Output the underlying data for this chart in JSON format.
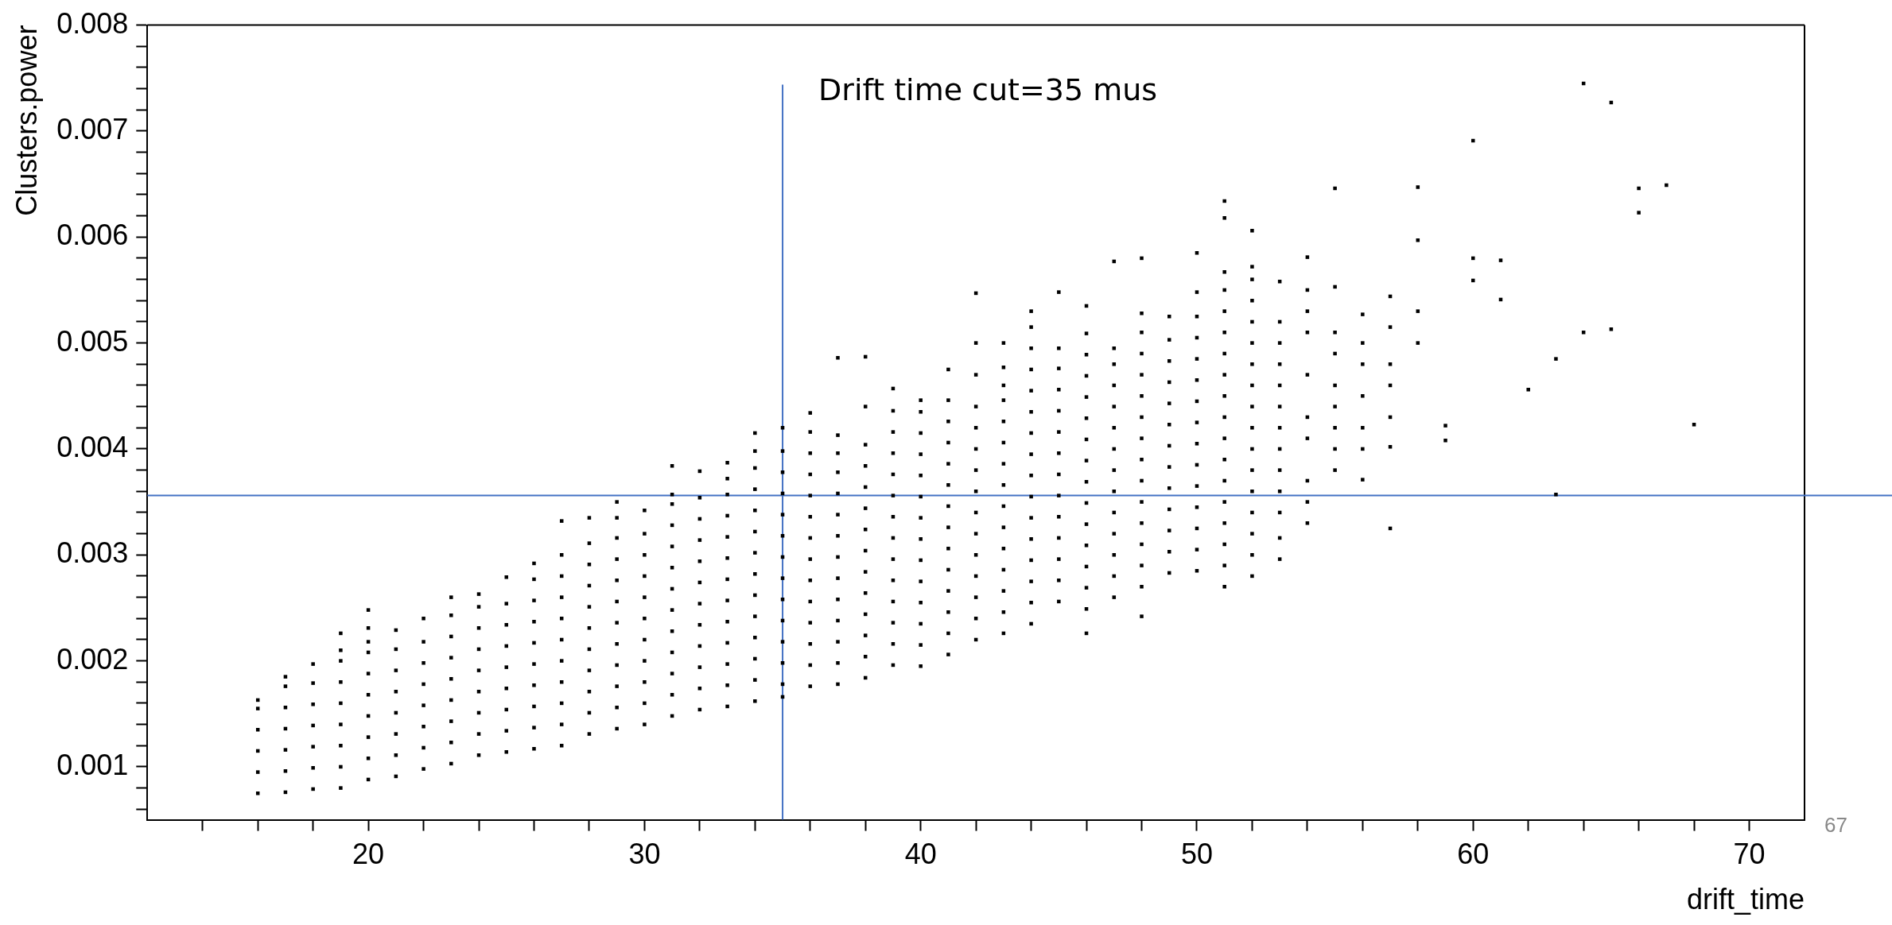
{
  "chart_data": {
    "type": "scatter",
    "xlabel": "drift_time",
    "ylabel": "Clusters.power",
    "marker": "square",
    "xlim": [
      12,
      72
    ],
    "ylim": [
      0.0005,
      0.008
    ],
    "xticks": [
      {
        "value": 14,
        "label": null
      },
      {
        "value": 16,
        "label": null
      },
      {
        "value": 18,
        "label": null
      },
      20,
      {
        "value": 22,
        "label": null
      },
      {
        "value": 24,
        "label": null
      },
      {
        "value": 26,
        "label": null
      },
      {
        "value": 28,
        "label": null
      },
      30,
      {
        "value": 32,
        "label": null
      },
      {
        "value": 34,
        "label": null
      },
      {
        "value": 36,
        "label": null
      },
      {
        "value": 38,
        "label": null
      },
      40,
      {
        "value": 42,
        "label": null
      },
      {
        "value": 44,
        "label": null
      },
      {
        "value": 46,
        "label": null
      },
      {
        "value": 48,
        "label": null
      },
      50,
      {
        "value": 52,
        "label": null
      },
      {
        "value": 54,
        "label": null
      },
      {
        "value": 56,
        "label": null
      },
      {
        "value": 58,
        "label": null
      },
      60,
      {
        "value": 62,
        "label": null
      },
      {
        "value": 64,
        "label": null
      },
      {
        "value": 66,
        "label": null
      },
      {
        "value": 68,
        "label": null
      },
      70
    ],
    "yticks": [
      {
        "value": 0.0006,
        "label": null
      },
      {
        "value": 0.0008,
        "label": null
      },
      0.001,
      {
        "value": 0.0012,
        "label": null
      },
      {
        "value": 0.0014,
        "label": null
      },
      {
        "value": 0.0016,
        "label": null
      },
      {
        "value": 0.0018,
        "label": null
      },
      0.002,
      {
        "value": 0.0022,
        "label": null
      },
      {
        "value": 0.0024,
        "label": null
      },
      {
        "value": 0.0026,
        "label": null
      },
      {
        "value": 0.0028,
        "label": null
      },
      0.003,
      {
        "value": 0.0032,
        "label": null
      },
      {
        "value": 0.0034,
        "label": null
      },
      {
        "value": 0.0036,
        "label": null
      },
      {
        "value": 0.0038,
        "label": null
      },
      0.004,
      {
        "value": 0.0042,
        "label": null
      },
      {
        "value": 0.0044,
        "label": null
      },
      {
        "value": 0.0046,
        "label": null
      },
      {
        "value": 0.0048,
        "label": null
      },
      0.005,
      {
        "value": 0.0052,
        "label": null
      },
      {
        "value": 0.0054,
        "label": null
      },
      {
        "value": 0.0056,
        "label": null
      },
      {
        "value": 0.0058,
        "label": null
      },
      0.006,
      {
        "value": 0.0062,
        "label": null
      },
      {
        "value": 0.0064,
        "label": null
      },
      {
        "value": 0.0066,
        "label": null
      },
      {
        "value": 0.0068,
        "label": null
      },
      0.007,
      {
        "value": 0.0072,
        "label": null
      },
      {
        "value": 0.0074,
        "label": null
      },
      {
        "value": 0.0076,
        "label": null
      },
      {
        "value": 0.0078,
        "label": null
      },
      0.008
    ],
    "ref_lines": [
      {
        "axis": "x",
        "value": 35,
        "label": "Drift time cut=35 mus",
        "color": "#4472c4"
      },
      {
        "axis": "y",
        "value": 0.00356,
        "color": "#4472c4"
      }
    ],
    "annotations": [
      "67"
    ],
    "series": [
      {
        "color": "#000000",
        "x": [
          16,
          16,
          16,
          16,
          16,
          16
        ],
        "values": [
          0.00075,
          0.00095,
          0.00115,
          0.00135,
          0.00155,
          0.00163
        ]
      },
      {
        "color": "#000000",
        "x": [
          17,
          17,
          17,
          17,
          17,
          17,
          17
        ],
        "values": [
          0.00076,
          0.00096,
          0.00116,
          0.00136,
          0.00156,
          0.00176,
          0.00185
        ]
      },
      {
        "color": "#000000",
        "x": [
          18,
          18,
          18,
          18,
          18,
          18,
          18
        ],
        "values": [
          0.00079,
          0.00099,
          0.00119,
          0.00139,
          0.00159,
          0.00179,
          0.00197
        ]
      },
      {
        "color": "#000000",
        "x": [
          19,
          19,
          19,
          19,
          19,
          19,
          19,
          19,
          19
        ],
        "values": [
          0.0008,
          0.001,
          0.0012,
          0.0014,
          0.0016,
          0.0018,
          0.002,
          0.0021,
          0.00226
        ]
      },
      {
        "color": "#000000",
        "x": [
          20,
          20,
          20,
          20,
          20,
          20,
          20,
          20,
          20,
          20
        ],
        "values": [
          0.00088,
          0.00108,
          0.00128,
          0.00148,
          0.00168,
          0.00188,
          0.00208,
          0.00218,
          0.00231,
          0.00248
        ]
      },
      {
        "color": "#000000",
        "x": [
          21,
          21,
          21,
          21,
          21,
          21,
          21,
          21
        ],
        "values": [
          0.00091,
          0.00111,
          0.00131,
          0.00151,
          0.00171,
          0.00191,
          0.00211,
          0.00229
        ]
      },
      {
        "color": "#000000",
        "x": [
          22,
          22,
          22,
          22,
          22,
          22,
          22,
          22
        ],
        "values": [
          0.00098,
          0.00118,
          0.00138,
          0.00158,
          0.00178,
          0.00198,
          0.00218,
          0.0024
        ]
      },
      {
        "color": "#000000",
        "x": [
          23,
          23,
          23,
          23,
          23,
          23,
          23,
          23,
          23
        ],
        "values": [
          0.00103,
          0.00123,
          0.00143,
          0.00163,
          0.00183,
          0.00203,
          0.00223,
          0.00243,
          0.0026
        ]
      },
      {
        "color": "#000000",
        "x": [
          24,
          24,
          24,
          24,
          24,
          24,
          24,
          24,
          24
        ],
        "values": [
          0.00111,
          0.00131,
          0.00151,
          0.00171,
          0.00191,
          0.00211,
          0.00231,
          0.00251,
          0.00263
        ]
      },
      {
        "color": "#000000",
        "x": [
          25,
          25,
          25,
          25,
          25,
          25,
          25,
          25,
          25
        ],
        "values": [
          0.00114,
          0.00134,
          0.00154,
          0.00174,
          0.00194,
          0.00214,
          0.00234,
          0.00254,
          0.00279
        ]
      },
      {
        "color": "#000000",
        "x": [
          26,
          26,
          26,
          26,
          26,
          26,
          26,
          26,
          26,
          26
        ],
        "values": [
          0.00117,
          0.00137,
          0.00157,
          0.00177,
          0.00197,
          0.00217,
          0.00237,
          0.00257,
          0.00277,
          0.00292
        ]
      },
      {
        "color": "#000000",
        "x": [
          27,
          27,
          27,
          27,
          27,
          27,
          27,
          27,
          27,
          27,
          27
        ],
        "values": [
          0.0012,
          0.0014,
          0.0016,
          0.0018,
          0.002,
          0.0022,
          0.0024,
          0.0026,
          0.0028,
          0.003,
          0.00332
        ]
      },
      {
        "color": "#000000",
        "x": [
          28,
          28,
          28,
          28,
          28,
          28,
          28,
          28,
          28,
          28,
          28
        ],
        "values": [
          0.00131,
          0.00151,
          0.00171,
          0.00191,
          0.00211,
          0.00231,
          0.00251,
          0.00271,
          0.00291,
          0.00311,
          0.00335
        ]
      },
      {
        "color": "#000000",
        "x": [
          29,
          29,
          29,
          29,
          29,
          29,
          29,
          29,
          29,
          29,
          29,
          29
        ],
        "values": [
          0.00136,
          0.00156,
          0.00176,
          0.00196,
          0.00216,
          0.00236,
          0.00256,
          0.00276,
          0.00296,
          0.00316,
          0.00335,
          0.0035
        ]
      },
      {
        "color": "#000000",
        "x": [
          30,
          30,
          30,
          30,
          30,
          30,
          30,
          30,
          30,
          30,
          30
        ],
        "values": [
          0.0014,
          0.0016,
          0.0018,
          0.002,
          0.0022,
          0.0024,
          0.0026,
          0.0028,
          0.003,
          0.0032,
          0.00342
        ]
      },
      {
        "color": "#000000",
        "x": [
          31,
          31,
          31,
          31,
          31,
          31,
          31,
          31,
          31,
          31,
          31,
          31,
          31
        ],
        "values": [
          0.00148,
          0.00168,
          0.00188,
          0.00208,
          0.00228,
          0.00248,
          0.00268,
          0.00288,
          0.00308,
          0.00328,
          0.00348,
          0.00357,
          0.00384
        ]
      },
      {
        "color": "#000000",
        "x": [
          32,
          32,
          32,
          32,
          32,
          32,
          32,
          32,
          32,
          32,
          32,
          32
        ],
        "values": [
          0.00154,
          0.00174,
          0.00194,
          0.00214,
          0.00234,
          0.00254,
          0.00274,
          0.00294,
          0.00314,
          0.00334,
          0.00354,
          0.00379
        ]
      },
      {
        "color": "#000000",
        "x": [
          33,
          33,
          33,
          33,
          33,
          33,
          33,
          33,
          33,
          33,
          33,
          33,
          33
        ],
        "values": [
          0.00157,
          0.00177,
          0.00197,
          0.00217,
          0.00237,
          0.00257,
          0.00277,
          0.00297,
          0.00317,
          0.00337,
          0.00357,
          0.00372,
          0.00387
        ]
      },
      {
        "color": "#000000",
        "x": [
          34,
          34,
          34,
          34,
          34,
          34,
          34,
          34,
          34,
          34,
          34,
          34,
          34,
          34
        ],
        "values": [
          0.00162,
          0.00182,
          0.00202,
          0.00222,
          0.00242,
          0.00262,
          0.00282,
          0.00302,
          0.00322,
          0.00342,
          0.00362,
          0.00382,
          0.00398,
          0.00415
        ]
      },
      {
        "color": "#000000",
        "x": [
          35,
          35,
          35,
          35,
          35,
          35,
          35,
          35,
          35,
          35,
          35,
          35,
          35,
          35
        ],
        "values": [
          0.00166,
          0.00178,
          0.00198,
          0.00218,
          0.00238,
          0.00258,
          0.00278,
          0.00298,
          0.00318,
          0.00338,
          0.00358,
          0.00378,
          0.00398,
          0.0042
        ]
      },
      {
        "color": "#000000",
        "x": [
          36,
          36,
          36,
          36,
          36,
          36,
          36,
          36,
          36,
          36,
          36,
          36,
          36,
          36
        ],
        "values": [
          0.00176,
          0.00196,
          0.00216,
          0.00236,
          0.00256,
          0.00276,
          0.00296,
          0.00316,
          0.00336,
          0.00356,
          0.00376,
          0.00396,
          0.00416,
          0.00434
        ]
      },
      {
        "color": "#000000",
        "x": [
          37,
          37,
          37,
          37,
          37,
          37,
          37,
          37,
          37,
          37,
          37,
          37,
          37,
          37
        ],
        "values": [
          0.00178,
          0.00198,
          0.00218,
          0.00238,
          0.00258,
          0.00278,
          0.00298,
          0.00318,
          0.00338,
          0.00358,
          0.00378,
          0.00396,
          0.00413,
          0.00486
        ]
      },
      {
        "color": "#000000",
        "x": [
          38,
          38,
          38,
          38,
          38,
          38,
          38,
          38,
          38,
          38,
          38,
          38,
          38,
          38
        ],
        "values": [
          0.00184,
          0.00204,
          0.00224,
          0.00244,
          0.00264,
          0.00284,
          0.00304,
          0.00324,
          0.00344,
          0.00364,
          0.00384,
          0.00404,
          0.0044,
          0.00487
        ]
      },
      {
        "color": "#000000",
        "x": [
          39,
          39,
          39,
          39,
          39,
          39,
          39,
          39,
          39,
          39,
          39,
          39,
          39,
          39
        ],
        "values": [
          0.00196,
          0.00216,
          0.00236,
          0.00256,
          0.00276,
          0.00296,
          0.00316,
          0.00336,
          0.00356,
          0.00376,
          0.00396,
          0.00416,
          0.00436,
          0.00457
        ]
      },
      {
        "color": "#000000",
        "x": [
          40,
          40,
          40,
          40,
          40,
          40,
          40,
          40,
          40,
          40,
          40,
          40,
          40,
          40
        ],
        "values": [
          0.00195,
          0.00215,
          0.00235,
          0.00255,
          0.00275,
          0.00295,
          0.00315,
          0.00335,
          0.00355,
          0.00375,
          0.00395,
          0.00415,
          0.00435,
          0.00446
        ]
      },
      {
        "color": "#000000",
        "x": [
          41,
          41,
          41,
          41,
          41,
          41,
          41,
          41,
          41,
          41,
          41,
          41,
          41,
          41
        ],
        "values": [
          0.00206,
          0.00226,
          0.00246,
          0.00266,
          0.00286,
          0.00306,
          0.00326,
          0.00346,
          0.00366,
          0.00386,
          0.00406,
          0.00426,
          0.00446,
          0.00475
        ]
      },
      {
        "color": "#000000",
        "x": [
          42,
          42,
          42,
          42,
          42,
          42,
          42,
          42,
          42,
          42,
          42,
          42,
          42,
          42,
          42
        ],
        "values": [
          0.0022,
          0.0024,
          0.0026,
          0.0028,
          0.003,
          0.0032,
          0.0034,
          0.0036,
          0.0038,
          0.004,
          0.0042,
          0.0044,
          0.0047,
          0.005,
          0.00547
        ]
      },
      {
        "color": "#000000",
        "x": [
          43,
          43,
          43,
          43,
          43,
          43,
          43,
          43,
          43,
          43,
          43,
          43,
          43,
          43,
          43
        ],
        "values": [
          0.00226,
          0.00246,
          0.00266,
          0.00286,
          0.00306,
          0.00326,
          0.00346,
          0.00366,
          0.00386,
          0.00406,
          0.00426,
          0.00446,
          0.0046,
          0.00477,
          0.005
        ]
      },
      {
        "color": "#000000",
        "x": [
          44,
          44,
          44,
          44,
          44,
          44,
          44,
          44,
          44,
          44,
          44,
          44,
          44,
          44,
          44,
          44
        ],
        "values": [
          0.00235,
          0.00255,
          0.00275,
          0.00295,
          0.00315,
          0.00335,
          0.00355,
          0.00375,
          0.00395,
          0.00415,
          0.00435,
          0.00455,
          0.00475,
          0.00495,
          0.00515,
          0.0053
        ]
      },
      {
        "color": "#000000",
        "x": [
          45,
          45,
          45,
          45,
          45,
          45,
          45,
          45,
          45,
          45,
          45,
          45,
          45,
          45
        ],
        "values": [
          0.00256,
          0.00276,
          0.00296,
          0.00316,
          0.00336,
          0.00356,
          0.00376,
          0.00396,
          0.00416,
          0.00436,
          0.00456,
          0.00476,
          0.00495,
          0.00548
        ]
      },
      {
        "color": "#000000",
        "x": [
          46,
          46,
          46,
          46,
          46,
          46,
          46,
          46,
          46,
          46,
          46,
          46,
          46,
          46,
          46,
          46
        ],
        "values": [
          0.00226,
          0.00249,
          0.00269,
          0.00289,
          0.00309,
          0.00329,
          0.00349,
          0.00369,
          0.00389,
          0.00409,
          0.00429,
          0.00449,
          0.00469,
          0.00489,
          0.00509,
          0.00535
        ]
      },
      {
        "color": "#000000",
        "x": [
          47,
          47,
          47,
          47,
          47,
          47,
          47,
          47,
          47,
          47,
          47,
          47,
          47,
          47
        ],
        "values": [
          0.0026,
          0.0028,
          0.003,
          0.0032,
          0.0034,
          0.0036,
          0.0038,
          0.004,
          0.0042,
          0.0044,
          0.0046,
          0.0048,
          0.00495,
          0.00577
        ]
      },
      {
        "color": "#000000",
        "x": [
          48,
          48,
          48,
          48,
          48,
          48,
          48,
          48,
          48,
          48,
          48,
          48,
          48,
          48,
          48,
          48
        ],
        "values": [
          0.00242,
          0.0027,
          0.0029,
          0.0031,
          0.0033,
          0.0035,
          0.0037,
          0.0039,
          0.0041,
          0.0043,
          0.0045,
          0.0047,
          0.0049,
          0.0051,
          0.00528,
          0.0058
        ]
      },
      {
        "color": "#000000",
        "x": [
          49,
          49,
          49,
          49,
          49,
          49,
          49,
          49,
          49,
          49,
          49,
          49,
          49
        ],
        "values": [
          0.00283,
          0.00303,
          0.00323,
          0.00343,
          0.00363,
          0.00383,
          0.00403,
          0.00423,
          0.00443,
          0.00463,
          0.00483,
          0.00503,
          0.00525
        ]
      },
      {
        "color": "#000000",
        "x": [
          50,
          50,
          50,
          50,
          50,
          50,
          50,
          50,
          50,
          50,
          50,
          50,
          50,
          50,
          50
        ],
        "values": [
          0.00285,
          0.00305,
          0.00325,
          0.00345,
          0.00365,
          0.00385,
          0.00405,
          0.00425,
          0.00445,
          0.00465,
          0.00485,
          0.00505,
          0.00525,
          0.00548,
          0.00585
        ]
      },
      {
        "color": "#000000",
        "x": [
          51,
          51,
          51,
          51,
          51,
          51,
          51,
          51,
          51,
          51,
          51,
          51,
          51,
          51,
          51,
          51,
          51,
          51
        ],
        "values": [
          0.0027,
          0.0029,
          0.0031,
          0.0033,
          0.0035,
          0.0037,
          0.0039,
          0.0041,
          0.0043,
          0.0045,
          0.0047,
          0.0049,
          0.0051,
          0.0053,
          0.0055,
          0.00567,
          0.00618,
          0.00634
        ]
      },
      {
        "color": "#000000",
        "x": [
          52,
          52,
          52,
          52,
          52,
          52,
          52,
          52,
          52,
          52,
          52,
          52,
          52,
          52,
          52,
          52,
          52
        ],
        "values": [
          0.0028,
          0.003,
          0.0032,
          0.0034,
          0.0036,
          0.0038,
          0.004,
          0.0042,
          0.0044,
          0.0046,
          0.0048,
          0.005,
          0.0052,
          0.0054,
          0.0056,
          0.00572,
          0.00606
        ]
      },
      {
        "color": "#000000",
        "x": [
          53,
          53,
          53,
          53,
          53,
          53,
          53,
          53,
          53,
          53,
          53,
          53,
          53
        ],
        "values": [
          0.00296,
          0.00316,
          0.0034,
          0.0036,
          0.0038,
          0.004,
          0.0042,
          0.0044,
          0.0046,
          0.0048,
          0.005,
          0.0052,
          0.00558
        ]
      },
      {
        "color": "#000000",
        "x": [
          54,
          54,
          54,
          54,
          54,
          54,
          54,
          54,
          54,
          54
        ],
        "values": [
          0.0033,
          0.0035,
          0.0037,
          0.0041,
          0.0043,
          0.0047,
          0.0051,
          0.0053,
          0.0055,
          0.00581
        ]
      },
      {
        "color": "#000000",
        "x": [
          55,
          55,
          55,
          55,
          55,
          55,
          55,
          55,
          55
        ],
        "values": [
          0.0038,
          0.004,
          0.0042,
          0.0044,
          0.0046,
          0.0049,
          0.0051,
          0.00553,
          0.00646
        ]
      },
      {
        "color": "#000000",
        "x": [
          56,
          56,
          56,
          56,
          56,
          56,
          56
        ],
        "values": [
          0.00371,
          0.004,
          0.0042,
          0.0045,
          0.0048,
          0.005,
          0.00527
        ]
      },
      {
        "color": "#000000",
        "x": [
          57,
          57,
          57,
          57,
          57,
          57,
          57
        ],
        "values": [
          0.00325,
          0.00402,
          0.0043,
          0.0046,
          0.0048,
          0.00515,
          0.00544
        ]
      },
      {
        "color": "#000000",
        "x": [
          58,
          58,
          58,
          58
        ],
        "values": [
          0.005,
          0.0053,
          0.00597,
          0.00647
        ]
      },
      {
        "color": "#000000",
        "x": [
          59,
          59,
          60,
          60,
          60,
          61,
          61,
          62,
          63,
          63,
          64,
          64,
          65,
          65,
          66,
          66,
          67,
          68
        ],
        "values": [
          0.00408,
          0.00422,
          0.00559,
          0.0058,
          0.00691,
          0.00541,
          0.00578,
          0.00456,
          0.00357,
          0.00485,
          0.0051,
          0.00745,
          0.00513,
          0.00727,
          0.00623,
          0.00646,
          0.00649,
          0.00423
        ]
      }
    ]
  }
}
